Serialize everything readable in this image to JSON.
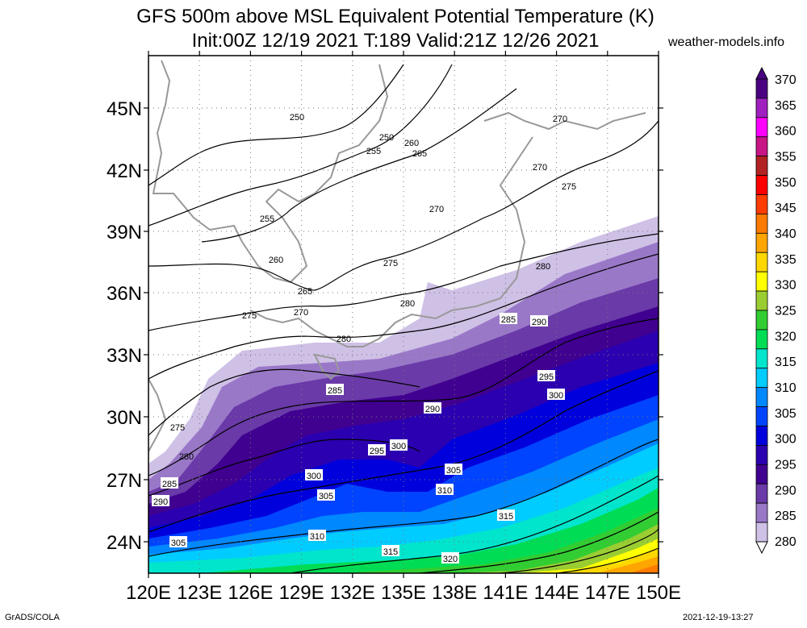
{
  "header": {
    "title_line1": "GFS 500m above MSL Equivalent Potential Temperature (K)",
    "title_line2": "Init:00Z 12/19 2021 T:189 Valid:21Z 12/26 2021",
    "site": "weather-models.info"
  },
  "footer": {
    "left": "GrADS/COLA",
    "right": "2021-12-19-13:27"
  },
  "axes": {
    "lon_labels": [
      "120E",
      "123E",
      "126E",
      "129E",
      "132E",
      "135E",
      "138E",
      "141E",
      "144E",
      "147E",
      "150E"
    ],
    "lat_labels": [
      "24N",
      "27N",
      "30N",
      "33N",
      "36N",
      "39N",
      "42N",
      "45N"
    ]
  },
  "colorbar": {
    "levels": [
      {
        "label": "370",
        "color": "#4b0082"
      },
      {
        "label": "365",
        "color": "#a020c0"
      },
      {
        "label": "360",
        "color": "#ff00ff"
      },
      {
        "label": "355",
        "color": "#c71585"
      },
      {
        "label": "350",
        "color": "#b22222"
      },
      {
        "label": "345",
        "color": "#ff0000"
      },
      {
        "label": "340",
        "color": "#ff3d00"
      },
      {
        "label": "335",
        "color": "#ff7a00"
      },
      {
        "label": "330",
        "color": "#ffa500"
      },
      {
        "label": "325",
        "color": "#ffd700"
      },
      {
        "label": "320",
        "color": "#ffff00"
      },
      {
        "label": "315",
        "color": "#9acd32"
      },
      {
        "label": "310",
        "color": "#32cd32"
      },
      {
        "label": "305",
        "color": "#00dd55"
      },
      {
        "label": "300",
        "color": "#00e5cc"
      },
      {
        "label": "295",
        "color": "#00ccff"
      },
      {
        "label": "290",
        "color": "#0088ff"
      },
      {
        "label": "285",
        "color": "#0044ff"
      },
      {
        "label": "280",
        "color": "#0000dd"
      },
      {
        "label": "",
        "color": "#2a00b0"
      },
      {
        "label": "",
        "color": "#400090"
      },
      {
        "label": "",
        "color": "#6a3aa8"
      },
      {
        "label": "",
        "color": "#9a78c8"
      },
      {
        "label": "",
        "color": "#cfc0e6"
      }
    ],
    "tick_labels": [
      "370",
      "365",
      "360",
      "355",
      "350",
      "345",
      "340",
      "335",
      "330",
      "325",
      "320",
      "315",
      "310",
      "305",
      "300",
      "295",
      "290",
      "285",
      "280"
    ]
  },
  "contour_labels": [
    "250",
    "255",
    "260",
    "265",
    "270",
    "275",
    "280",
    "285",
    "290",
    "295",
    "300",
    "305",
    "310",
    "315",
    "320"
  ]
}
